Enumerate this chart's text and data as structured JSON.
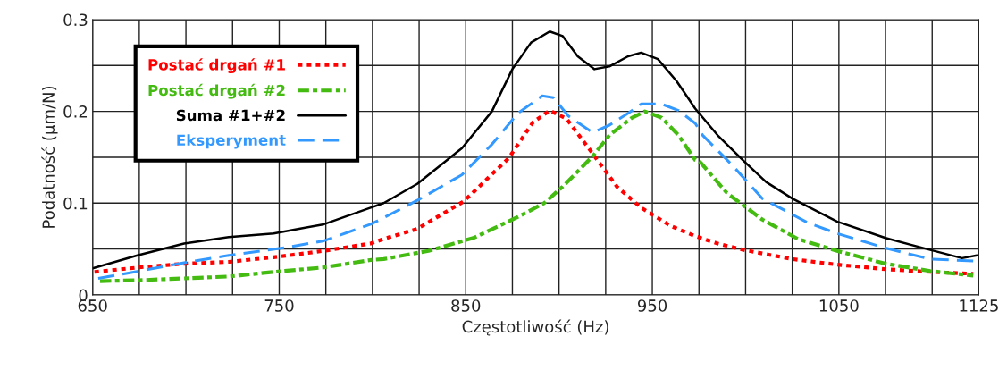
{
  "chart_data": {
    "type": "line",
    "xlabel": "Częstotliwość (Hz)",
    "ylabel": "Podatność (μm/N)",
    "xlim": [
      650,
      1125
    ],
    "xticks": [
      650,
      {
        "value": 675,
        "label": null
      },
      {
        "value": 700,
        "label": null
      },
      {
        "value": 725,
        "label": null
      },
      750,
      {
        "value": 775,
        "label": null
      },
      {
        "value": 800,
        "label": null
      },
      {
        "value": 825,
        "label": null
      },
      850,
      {
        "value": 875,
        "label": null
      },
      {
        "value": 900,
        "label": null
      },
      {
        "value": 925,
        "label": null
      },
      950,
      {
        "value": 975,
        "label": null
      },
      {
        "value": 1000,
        "label": null
      },
      {
        "value": 1025,
        "label": null
      },
      1050,
      {
        "value": 1075,
        "label": null
      },
      {
        "value": 1100,
        "label": null
      },
      1125
    ],
    "ylim": [
      0,
      0.3
    ],
    "yticks": [
      0,
      {
        "value": 0.05,
        "label": null
      },
      0.1,
      {
        "value": 0.15,
        "label": null
      },
      0.2,
      {
        "value": 0.25,
        "label": null
      },
      0.3
    ],
    "grid": true,
    "legend": "top left",
    "series": [
      {
        "name": "Postać drgań #1",
        "color": "#ff0000",
        "line_style": "dotted",
        "x": [
          651,
          675,
          699,
          723,
          747,
          774,
          799,
          806,
          824,
          849,
          873,
          886,
          895,
          904,
          918,
          931,
          944,
          960,
          973,
          985,
          999,
          1025,
          1049,
          1075,
          1099,
          1122
        ],
        "values": [
          0.025,
          0.03,
          0.034,
          0.036,
          0.041,
          0.048,
          0.056,
          0.061,
          0.072,
          0.102,
          0.149,
          0.188,
          0.201,
          0.192,
          0.154,
          0.118,
          0.095,
          0.075,
          0.064,
          0.056,
          0.049,
          0.039,
          0.033,
          0.028,
          0.025,
          0.023
        ]
      },
      {
        "name": "Postać drgań #2",
        "color": "#44bb11",
        "line_style": "dashdot",
        "x": [
          654,
          675,
          699,
          723,
          747,
          774,
          799,
          806,
          830,
          854,
          878,
          892,
          902,
          918,
          927,
          939,
          946,
          955,
          964,
          973,
          976,
          990,
          1009,
          1028,
          1049,
          1075,
          1099,
          1122
        ],
        "values": [
          0.015,
          0.016,
          0.018,
          0.02,
          0.025,
          0.03,
          0.038,
          0.039,
          0.048,
          0.062,
          0.085,
          0.1,
          0.118,
          0.151,
          0.174,
          0.193,
          0.2,
          0.193,
          0.174,
          0.147,
          0.144,
          0.111,
          0.082,
          0.061,
          0.048,
          0.034,
          0.026,
          0.021
        ]
      },
      {
        "name": "Suma #1+#2",
        "color": "#000000",
        "line_style": "solid",
        "x": [
          650,
          674,
          699,
          723,
          747,
          774,
          799,
          806,
          824,
          848,
          864,
          875,
          885,
          895,
          902,
          910,
          919,
          927,
          937,
          944,
          953,
          963,
          973,
          985,
          999,
          1011,
          1025,
          1049,
          1075,
          1099,
          1116,
          1124
        ],
        "values": [
          0.029,
          0.043,
          0.056,
          0.063,
          0.067,
          0.077,
          0.095,
          0.1,
          0.121,
          0.16,
          0.2,
          0.246,
          0.275,
          0.287,
          0.282,
          0.26,
          0.246,
          0.249,
          0.26,
          0.264,
          0.257,
          0.233,
          0.203,
          0.174,
          0.146,
          0.123,
          0.105,
          0.08,
          0.062,
          0.049,
          0.04,
          0.043
        ]
      },
      {
        "name": "Eksperyment",
        "color": "#3399ff",
        "line_style": "dashed",
        "x": [
          653,
          675,
          699,
          723,
          755,
          774,
          799,
          806,
          824,
          848,
          864,
          878,
          891,
          897,
          905,
          918,
          927,
          937,
          944,
          955,
          964,
          973,
          977,
          993,
          1009,
          1033,
          1049,
          1075,
          1099,
          1122
        ],
        "values": [
          0.018,
          0.026,
          0.035,
          0.043,
          0.052,
          0.059,
          0.077,
          0.084,
          0.103,
          0.131,
          0.164,
          0.198,
          0.217,
          0.215,
          0.195,
          0.177,
          0.185,
          0.198,
          0.208,
          0.208,
          0.201,
          0.187,
          0.174,
          0.141,
          0.105,
          0.079,
          0.067,
          0.051,
          0.039,
          0.037
        ]
      }
    ]
  }
}
